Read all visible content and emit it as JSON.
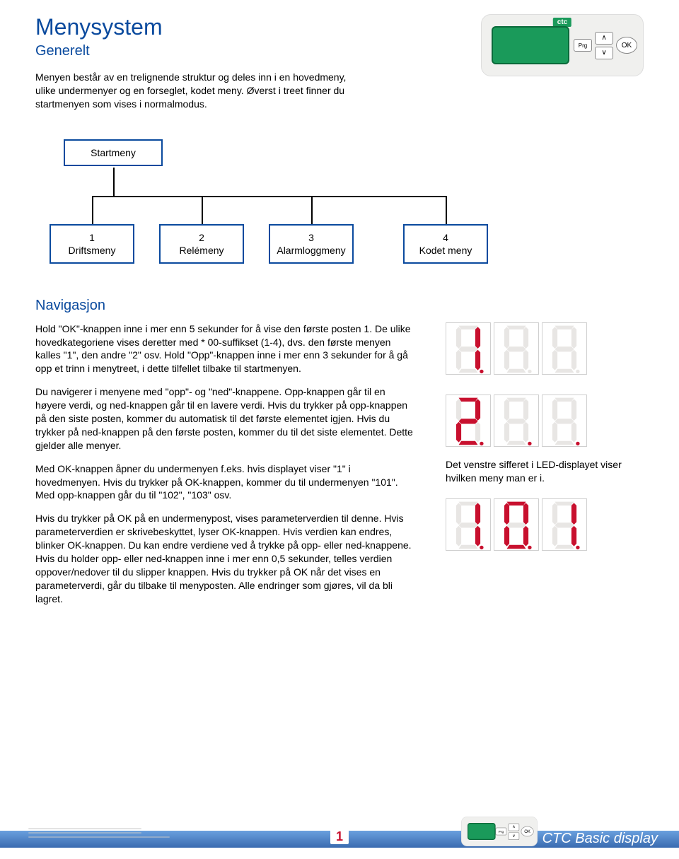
{
  "header": {
    "title": "Menysystem",
    "subtitle": "Generelt",
    "intro": "Menyen består av en trelignende struktur og deles inn i en hovedmeny, ulike undermenyer og en forseglet, kodet meny. Øverst i treet finner du startmenyen som vises i normalmodus."
  },
  "device": {
    "logo": "ctc",
    "btn_prg": "Prg",
    "btn_up": "∧",
    "btn_down": "∨",
    "btn_ok": "OK"
  },
  "tree": {
    "root": "Startmeny",
    "children": [
      {
        "num": "1",
        "label": "Driftsmeny"
      },
      {
        "num": "2",
        "label": "Relémeny"
      },
      {
        "num": "3",
        "label": "Alarmloggmeny"
      },
      {
        "num": "4",
        "label": "Kodet meny"
      }
    ]
  },
  "nav": {
    "heading": "Navigasjon",
    "paragraphs": [
      "Hold \"OK\"-knappen inne i mer enn 5 sekunder for å vise den første posten 1. De ulike hovedkategoriene vises deretter med * 00-suffikset (1-4), dvs. den første menyen kalles \"1\", den andre \"2\" osv. Hold \"Opp\"-knappen inne i mer enn 3 sekunder for å gå opp et trinn i menytreet, i dette tilfellet tilbake til startmenyen.",
      "Du navigerer i menyene med \"opp\"- og \"ned\"-knappene. Opp-knappen går til en høyere verdi, og ned-knappen går til en lavere verdi. Hvis du trykker på opp-knappen på den siste posten, kommer du automatisk til det første elementet igjen. Hvis du trykker på ned-knappen på den første posten, kommer du til det siste elementet. Dette gjelder alle menyer.",
      "Med OK-knappen åpner du undermenyen f.eks. hvis displayet viser \"1\" i hovedmenyen. Hvis du trykker på OK-knappen, kommer du til undermenyen \"101\". Med opp-knappen går du til \"102\", \"103\" osv.",
      "Hvis du trykker på OK på en undermenypost, vises parameterverdien til denne. Hvis parameterverdien er skrivebeskyttet, lyser OK-knappen. Hvis verdien kan endres, blinker OK-knappen. Du kan endre verdiene ved å trykke på opp- eller ned-knappene. Hvis du holder opp- eller ned-knappen inne i mer enn 0,5 sekunder, telles verdien oppover/nedover til du slipper knappen. Hvis du trykker på OK når det vises en parameterverdi, går du tilbake til menyposten. Alle endringer som gjøres, vil da bli lagret."
    ]
  },
  "led": {
    "displays": [
      {
        "digits": [
          {
            "type": "1"
          },
          {
            "type": "blank"
          },
          {
            "type": "blank"
          }
        ]
      },
      {
        "digits": [
          {
            "type": "2"
          },
          {
            "type": "blankdp"
          },
          {
            "type": "blankdp"
          }
        ]
      },
      {
        "digits": [
          {
            "type": "1"
          },
          {
            "type": "0"
          },
          {
            "type": "1"
          }
        ]
      }
    ],
    "caption": "Det venstre sifferet i LED-displayet viser hvilken meny man er i.",
    "colors": {
      "on": "#c8102e",
      "off": "#e8e6e4",
      "border": "#cfcfcf"
    }
  },
  "footer": {
    "page": "1",
    "brand": "CTC  Basic display"
  }
}
